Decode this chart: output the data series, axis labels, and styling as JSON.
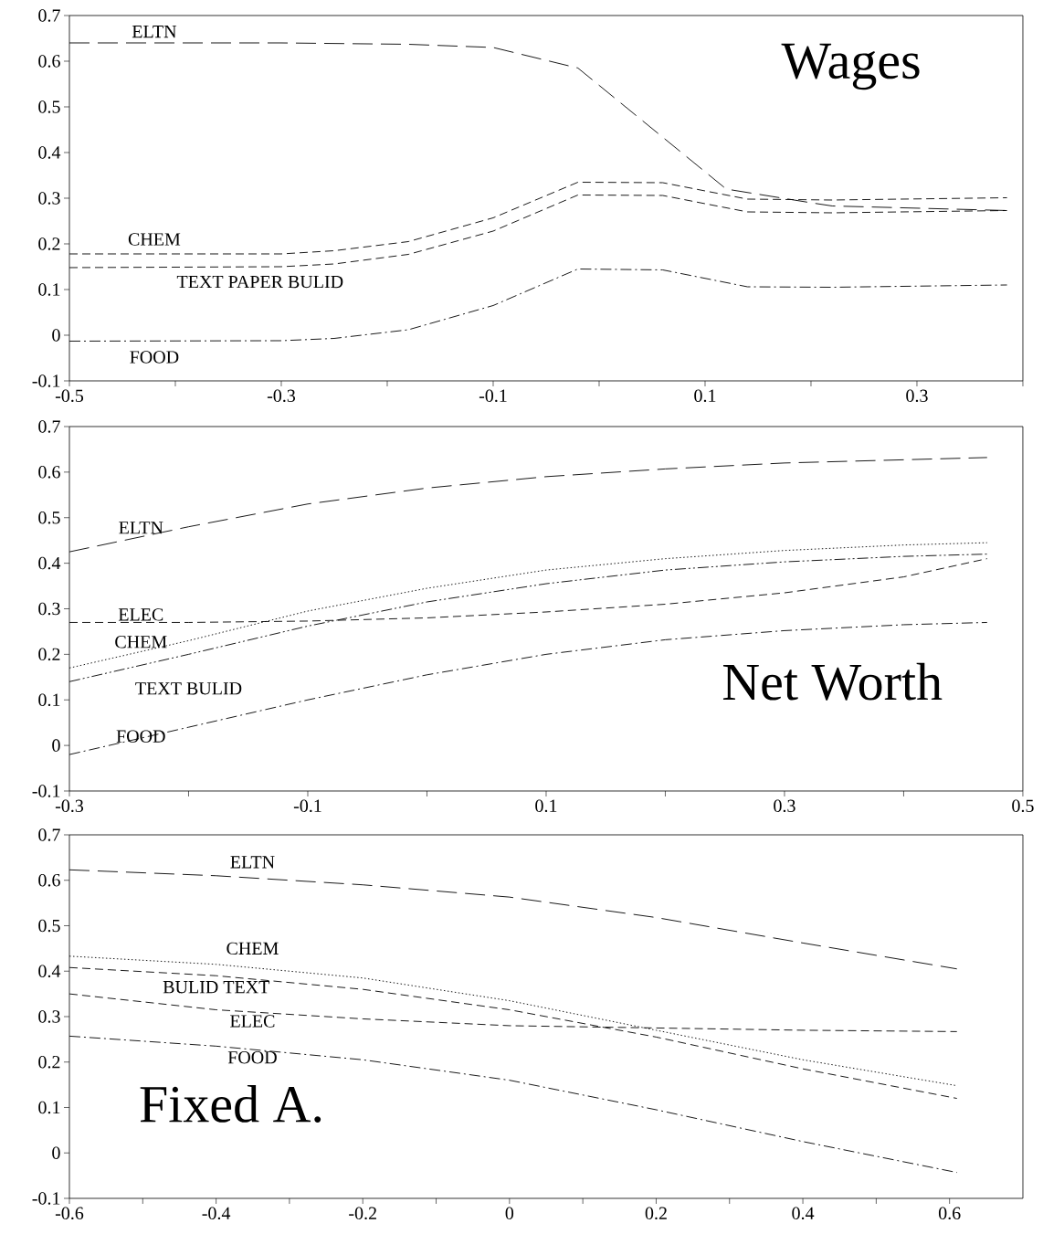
{
  "chart_data": [
    {
      "type": "line",
      "title": "Wages",
      "xlim": [
        -0.5,
        0.4
      ],
      "ylim": [
        -0.1,
        0.7
      ],
      "xticks": [
        -0.5,
        {
          "value": -0.4,
          "label": null
        },
        -0.3,
        {
          "value": -0.2,
          "label": null
        },
        -0.1,
        {
          "value": 0,
          "label": null
        },
        0.1,
        {
          "value": 0.2,
          "label": null
        },
        0.3,
        {
          "value": 0.4,
          "label": null
        }
      ],
      "yticks": [
        -0.1,
        0,
        0.1,
        0.2,
        0.3,
        0.4,
        0.5,
        0.6,
        0.7
      ],
      "grid": false,
      "marker": "none",
      "series": [
        {
          "color": "#000000",
          "line_style": "longdashed",
          "x": [
            -0.5,
            -0.3,
            -0.18,
            -0.1,
            -0.02,
            0.12,
            0.2,
            0.22,
            0.385
          ],
          "values": [
            0.64,
            0.64,
            0.637,
            0.63,
            0.585,
            0.32,
            0.29,
            0.283,
            0.273
          ]
        },
        {
          "color": "#000000",
          "line_style": "dashed",
          "x": [
            -0.5,
            -0.3,
            -0.25,
            -0.18,
            -0.1,
            -0.02,
            0.06,
            0.14,
            0.22,
            0.385
          ],
          "values": [
            0.178,
            0.178,
            0.185,
            0.205,
            0.257,
            0.335,
            0.334,
            0.298,
            0.296,
            0.301
          ]
        },
        {
          "color": "#000000",
          "line_style": "dashed",
          "x": [
            -0.5,
            -0.3,
            -0.25,
            -0.18,
            -0.1,
            -0.02,
            0.06,
            0.14,
            0.22,
            0.385
          ],
          "values": [
            0.148,
            0.15,
            0.156,
            0.177,
            0.228,
            0.307,
            0.306,
            0.27,
            0.268,
            0.273
          ]
        },
        {
          "color": "#000000",
          "line_style": "dashdot",
          "x": [
            -0.5,
            -0.3,
            -0.25,
            -0.18,
            -0.1,
            -0.02,
            0.06,
            0.14,
            0.22,
            0.385
          ],
          "values": [
            -0.013,
            -0.012,
            -0.007,
            0.012,
            0.065,
            0.145,
            0.143,
            0.106,
            0.105,
            0.11
          ]
        }
      ],
      "annotations": [
        "ELTN",
        "CHEM",
        "TEXT  PAPER  BULID",
        "FOOD"
      ]
    },
    {
      "type": "line",
      "title": "Net Worth",
      "xlim": [
        -0.3,
        0.5
      ],
      "ylim": [
        -0.1,
        0.7
      ],
      "xticks": [
        -0.3,
        {
          "value": -0.2,
          "label": null
        },
        -0.1,
        {
          "value": 0,
          "label": null
        },
        0.1,
        {
          "value": 0.2,
          "label": null
        },
        0.3,
        {
          "value": 0.4,
          "label": null
        },
        0.5
      ],
      "yticks": [
        -0.1,
        0,
        0.1,
        0.2,
        0.3,
        0.4,
        0.5,
        0.6,
        0.7
      ],
      "grid": false,
      "marker": "none",
      "series": [
        {
          "color": "#000000",
          "line_style": "longdashed",
          "x": [
            -0.3,
            -0.2,
            -0.1,
            0,
            0.1,
            0.2,
            0.3,
            0.47
          ],
          "values": [
            0.425,
            0.48,
            0.53,
            0.565,
            0.59,
            0.607,
            0.62,
            0.632
          ]
        },
        {
          "color": "#000000",
          "line_style": "dashed",
          "x": [
            -0.3,
            -0.2,
            -0.1,
            0,
            0.1,
            0.2,
            0.3,
            0.4,
            0.47
          ],
          "values": [
            0.27,
            0.27,
            0.273,
            0.28,
            0.293,
            0.31,
            0.335,
            0.37,
            0.41
          ]
        },
        {
          "color": "#000000",
          "line_style": "dotted",
          "x": [
            -0.3,
            -0.2,
            -0.1,
            0,
            0.1,
            0.2,
            0.3,
            0.4,
            0.47
          ],
          "values": [
            0.17,
            0.23,
            0.295,
            0.345,
            0.385,
            0.41,
            0.428,
            0.44,
            0.445
          ]
        },
        {
          "color": "#000000",
          "line_style": "dashdotdot",
          "x": [
            -0.3,
            -0.2,
            -0.1,
            0,
            0.1,
            0.2,
            0.3,
            0.4,
            0.47
          ],
          "values": [
            0.14,
            0.2,
            0.262,
            0.315,
            0.355,
            0.385,
            0.403,
            0.415,
            0.42
          ]
        },
        {
          "color": "#000000",
          "line_style": "dashdot",
          "x": [
            -0.3,
            -0.2,
            -0.1,
            0,
            0.1,
            0.2,
            0.3,
            0.4,
            0.47
          ],
          "values": [
            -0.02,
            0.04,
            0.1,
            0.155,
            0.2,
            0.232,
            0.252,
            0.265,
            0.27
          ]
        }
      ],
      "annotations": [
        "ELTN",
        "ELEC",
        "CHEM",
        "TEXT BULID",
        "FOOD"
      ]
    },
    {
      "type": "line",
      "title": "Fixed A.",
      "xlim": [
        -0.6,
        0.7
      ],
      "ylim": [
        -0.1,
        0.7
      ],
      "xticks": [
        -0.6,
        {
          "value": -0.5,
          "label": null
        },
        -0.4,
        {
          "value": -0.3,
          "label": null
        },
        -0.2,
        {
          "value": -0.1,
          "label": null
        },
        0,
        {
          "value": 0.1,
          "label": null
        },
        0.2,
        {
          "value": 0.3,
          "label": null
        },
        0.4,
        {
          "value": 0.5,
          "label": null
        },
        0.6
      ],
      "yticks": [
        -0.1,
        0,
        0.1,
        0.2,
        0.3,
        0.4,
        0.5,
        0.6,
        0.7
      ],
      "grid": false,
      "marker": "none",
      "series": [
        {
          "color": "#000000",
          "line_style": "longdashed",
          "x": [
            -0.6,
            -0.4,
            -0.2,
            0,
            0.2,
            0.4,
            0.61
          ],
          "values": [
            0.623,
            0.61,
            0.59,
            0.563,
            0.518,
            0.462,
            0.405
          ]
        },
        {
          "color": "#000000",
          "line_style": "dotted",
          "x": [
            -0.6,
            -0.4,
            -0.2,
            0,
            0.2,
            0.4,
            0.61
          ],
          "values": [
            0.433,
            0.415,
            0.385,
            0.335,
            0.27,
            0.205,
            0.148
          ]
        },
        {
          "color": "#000000",
          "line_style": "dashed",
          "x": [
            -0.6,
            -0.4,
            -0.2,
            0,
            0.2,
            0.4,
            0.61
          ],
          "values": [
            0.408,
            0.39,
            0.36,
            0.315,
            0.255,
            0.185,
            0.12
          ]
        },
        {
          "color": "#000000",
          "line_style": "dashed",
          "x": [
            -0.6,
            -0.4,
            -0.2,
            0,
            0.2,
            0.4,
            0.61
          ],
          "values": [
            0.35,
            0.315,
            0.295,
            0.28,
            0.275,
            0.27,
            0.267
          ]
        },
        {
          "color": "#000000",
          "line_style": "dashdot",
          "x": [
            -0.6,
            -0.4,
            -0.2,
            0,
            0.2,
            0.4,
            0.61
          ],
          "values": [
            0.257,
            0.235,
            0.205,
            0.16,
            0.095,
            0.025,
            -0.043
          ]
        }
      ],
      "annotations": [
        "ELTN",
        "CHEM",
        "BULID  TEXT",
        "ELEC",
        "FOOD"
      ]
    }
  ]
}
